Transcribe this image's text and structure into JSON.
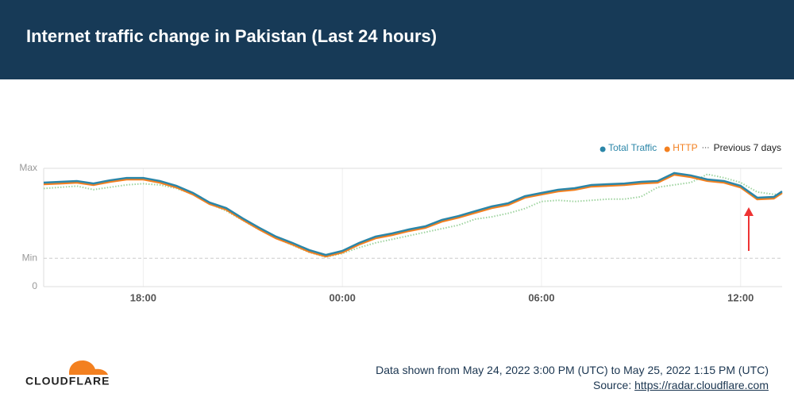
{
  "header": {
    "title": "Internet traffic change in Pakistan (Last 24 hours)"
  },
  "chart_data": {
    "type": "line",
    "legend_position": "top-right",
    "x": [
      0,
      0.5,
      1,
      1.5,
      2,
      2.5,
      3,
      3.5,
      4,
      4.5,
      5,
      5.5,
      6,
      6.5,
      7,
      7.5,
      8,
      8.5,
      9,
      9.5,
      10,
      10.5,
      11,
      11.5,
      12,
      12.5,
      13,
      13.5,
      14,
      14.5,
      15,
      15.5,
      16,
      16.5,
      17,
      17.5,
      18,
      18.5,
      19,
      19.5,
      20,
      20.5,
      21,
      21.5,
      22,
      22.25
    ],
    "xlim": [
      0,
      22.25
    ],
    "xticks": [
      {
        "value": 3,
        "label": "18:00"
      },
      {
        "value": 9,
        "label": "00:00"
      },
      {
        "value": 15,
        "label": "06:00"
      },
      {
        "value": 21,
        "label": "12:00"
      }
    ],
    "ylim": [
      0,
      1
    ],
    "yticks": [
      0,
      {
        "value": 0.24,
        "label": "Min"
      },
      {
        "value": 1,
        "label": "Max"
      }
    ],
    "grid": true,
    "series": [
      {
        "name": "Total Traffic",
        "color": "#2b86a8",
        "style": "solid",
        "values": [
          0.879,
          0.886,
          0.893,
          0.872,
          0.899,
          0.919,
          0.919,
          0.893,
          0.852,
          0.792,
          0.711,
          0.664,
          0.577,
          0.497,
          0.423,
          0.369,
          0.309,
          0.268,
          0.302,
          0.369,
          0.423,
          0.45,
          0.483,
          0.51,
          0.564,
          0.597,
          0.638,
          0.678,
          0.705,
          0.765,
          0.792,
          0.819,
          0.832,
          0.859,
          0.866,
          0.872,
          0.886,
          0.893,
          0.96,
          0.94,
          0.906,
          0.893,
          0.852,
          0.752,
          0.758,
          0.805
        ]
      },
      {
        "name": "HTTP",
        "color": "#f38020",
        "style": "solid",
        "values": [
          0.866,
          0.872,
          0.879,
          0.859,
          0.886,
          0.906,
          0.906,
          0.879,
          0.839,
          0.779,
          0.698,
          0.651,
          0.564,
          0.483,
          0.409,
          0.356,
          0.295,
          0.255,
          0.289,
          0.356,
          0.409,
          0.436,
          0.47,
          0.497,
          0.55,
          0.584,
          0.624,
          0.664,
          0.691,
          0.752,
          0.779,
          0.805,
          0.819,
          0.846,
          0.852,
          0.859,
          0.872,
          0.879,
          0.946,
          0.926,
          0.893,
          0.879,
          0.839,
          0.738,
          0.745,
          0.792
        ]
      },
      {
        "name": "Previous 7 days",
        "color": "#9fd4a0",
        "style": "dotted",
        "values": [
          0.83,
          0.84,
          0.85,
          0.82,
          0.84,
          0.86,
          0.87,
          0.86,
          0.83,
          0.78,
          0.7,
          0.64,
          0.56,
          0.48,
          0.41,
          0.35,
          0.29,
          0.25,
          0.28,
          0.33,
          0.37,
          0.4,
          0.43,
          0.46,
          0.49,
          0.52,
          0.57,
          0.59,
          0.62,
          0.66,
          0.72,
          0.73,
          0.72,
          0.73,
          0.74,
          0.74,
          0.76,
          0.84,
          0.86,
          0.88,
          0.95,
          0.92,
          0.88,
          0.8,
          0.78,
          0.78
        ]
      }
    ]
  },
  "footer": {
    "logo": "CLOUDFLARE",
    "range": "Data shown from May 24, 2022 3:00 PM (UTC) to May 25, 2022 1:15 PM (UTC)",
    "source_label": "Source:",
    "source_url": "https://radar.cloudflare.com"
  }
}
